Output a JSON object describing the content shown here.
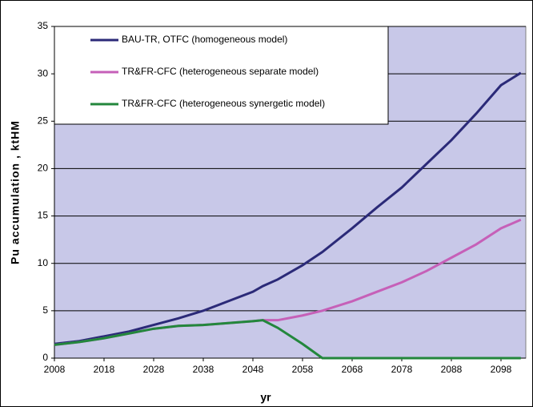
{
  "chart_data": {
    "type": "line",
    "x": [
      2008,
      2013,
      2018,
      2023,
      2028,
      2033,
      2038,
      2043,
      2048,
      2050,
      2053,
      2058,
      2062,
      2068,
      2073,
      2078,
      2083,
      2088,
      2093,
      2098,
      2102
    ],
    "series": [
      {
        "name": "BAU-TR, OTFC (homogeneous model)",
        "color": "#2b2a78",
        "values": [
          1.5,
          1.8,
          2.3,
          2.8,
          3.5,
          4.2,
          5.0,
          6.0,
          7.0,
          7.6,
          8.3,
          9.8,
          11.2,
          13.7,
          15.9,
          18.0,
          20.5,
          23.0,
          25.8,
          28.8,
          30.1
        ]
      },
      {
        "name": "TR&FR-CFC  (heterogeneous separate model)",
        "color": "#c660b8",
        "values": [
          1.4,
          1.7,
          2.1,
          2.6,
          3.1,
          3.4,
          3.5,
          3.7,
          3.9,
          4.0,
          4.0,
          4.5,
          5.0,
          6.0,
          7.0,
          8.0,
          9.2,
          10.6,
          12.0,
          13.7,
          14.6
        ]
      },
      {
        "name": "TR&FR-CFC (heterogeneous synergetic model)",
        "color": "#23873c",
        "values": [
          1.4,
          1.7,
          2.1,
          2.6,
          3.1,
          3.4,
          3.5,
          3.7,
          3.9,
          4.0,
          3.2,
          1.5,
          0,
          0,
          0,
          0,
          0,
          0,
          0,
          0,
          0
        ]
      }
    ],
    "xlabel": "yr",
    "ylabel": "Pu accumulation , ktHM",
    "xlim": [
      2008,
      2103
    ],
    "xticks": [
      2008,
      2018,
      2028,
      2038,
      2048,
      2058,
      2068,
      2078,
      2088,
      2098
    ],
    "ylim": [
      0,
      35
    ],
    "yticks": [
      0,
      5,
      10,
      15,
      20,
      25,
      30,
      35
    ],
    "grid": true,
    "legend": "upper left"
  }
}
